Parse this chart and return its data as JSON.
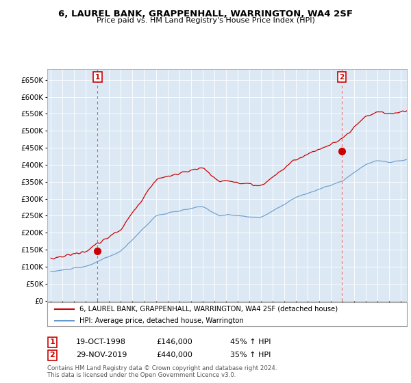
{
  "title": "6, LAUREL BANK, GRAPPENHALL, WARRINGTON, WA4 2SF",
  "subtitle": "Price paid vs. HM Land Registry's House Price Index (HPI)",
  "legend_line1": "6, LAUREL BANK, GRAPPENHALL, WARRINGTON, WA4 2SF (detached house)",
  "legend_line2": "HPI: Average price, detached house, Warrington",
  "sale1_date": "19-OCT-1998",
  "sale1_price": "£146,000",
  "sale1_hpi": "45% ↑ HPI",
  "sale2_date": "29-NOV-2019",
  "sale2_price": "£440,000",
  "sale2_hpi": "35% ↑ HPI",
  "footnote": "Contains HM Land Registry data © Crown copyright and database right 2024.\nThis data is licensed under the Open Government Licence v3.0.",
  "red_color": "#cc0000",
  "blue_color": "#6699cc",
  "bg_color": "#dce9f5",
  "ylim_min": 0,
  "ylim_max": 682000,
  "yticks": [
    0,
    50000,
    100000,
    150000,
    200000,
    250000,
    300000,
    350000,
    400000,
    450000,
    500000,
    550000,
    600000,
    650000
  ],
  "sale1_x": 1999.0,
  "sale1_y": 146000,
  "sale2_x": 2019.92,
  "sale2_y": 440000,
  "xmin": 1995.0,
  "xmax": 2025.5
}
